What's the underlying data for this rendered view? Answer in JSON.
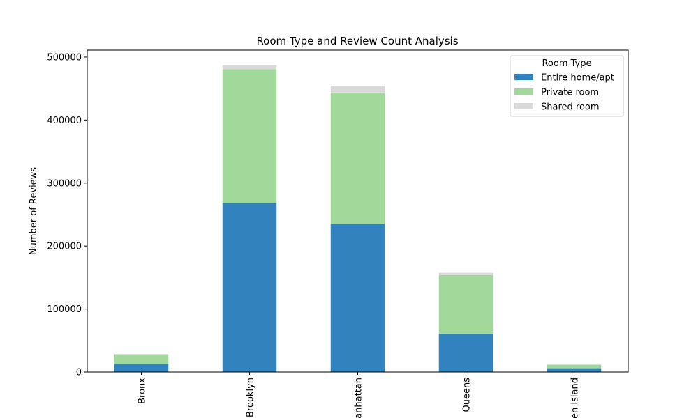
{
  "chart_data": {
    "type": "bar",
    "stacked": true,
    "title": "Room Type and Review Count Analysis",
    "xlabel": "",
    "ylabel": "Number of Reviews",
    "categories": [
      "Bronx",
      "Brooklyn",
      "Manhattan",
      "Queens",
      "Staten Island"
    ],
    "ylim": [
      0,
      511000
    ],
    "yticks": [
      0,
      100000,
      200000,
      300000,
      400000,
      500000
    ],
    "ytick_labels": [
      "0",
      "100000",
      "200000",
      "300000",
      "400000",
      "500000"
    ],
    "grid": false,
    "legend_title": "Room Type",
    "legend_position": "top-right",
    "series": [
      {
        "name": "Entire home/apt",
        "color": "#3182bd",
        "values": [
          12800,
          267700,
          235500,
          61000,
          6000
        ]
      },
      {
        "name": "Private room",
        "color": "#a1d99b",
        "values": [
          15200,
          213000,
          208200,
          93000,
          5500
        ]
      },
      {
        "name": "Shared room",
        "color": "#d9d9d9",
        "values": [
          700,
          6300,
          10800,
          3500,
          300
        ]
      }
    ]
  }
}
